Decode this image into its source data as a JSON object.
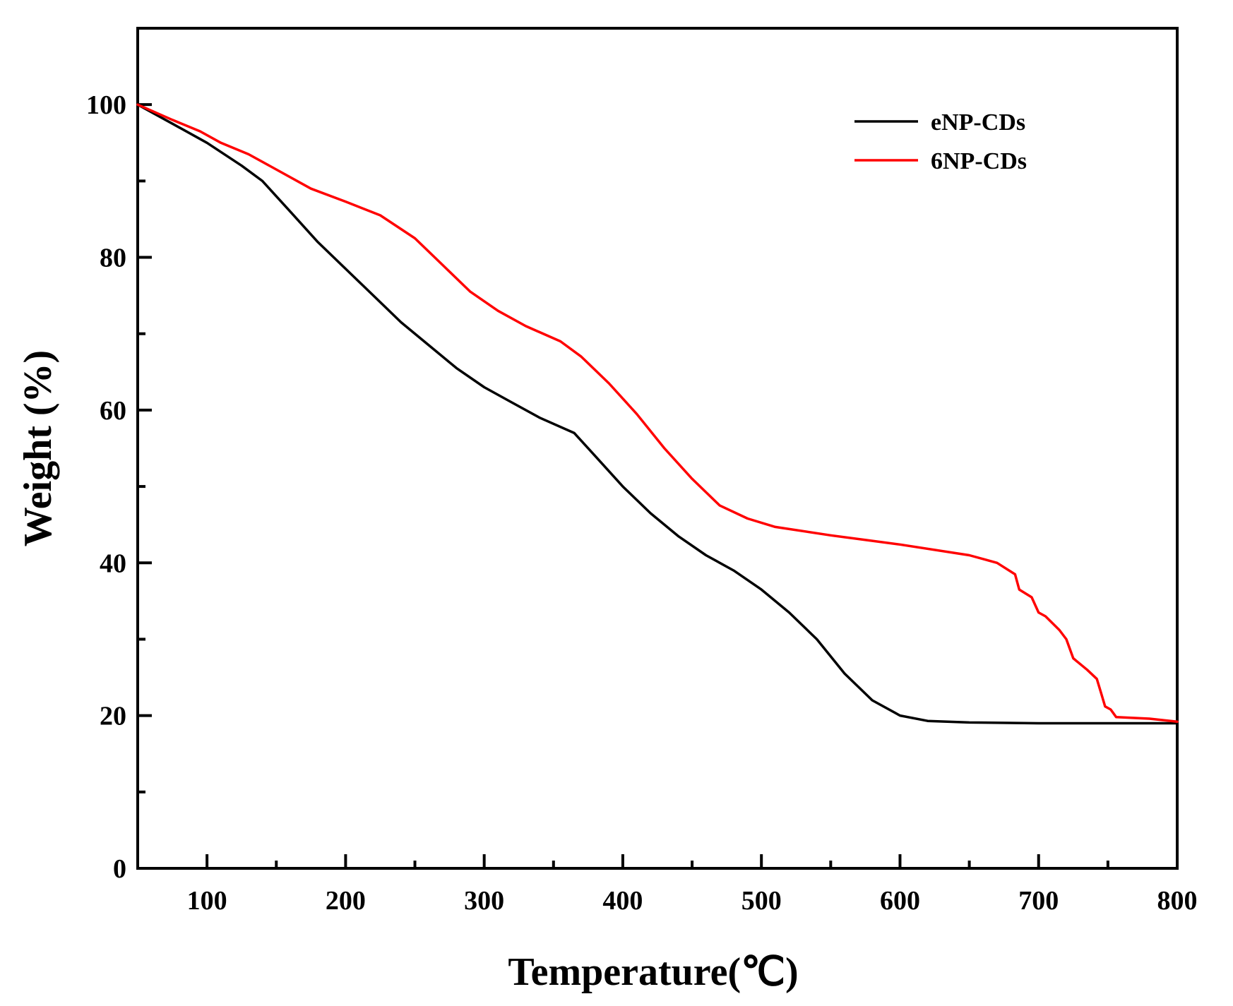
{
  "chart_data": {
    "type": "line",
    "title": "",
    "xlabel": "Temperature(℃)",
    "ylabel": "Weight (%)",
    "xlim": [
      50,
      800
    ],
    "ylim": [
      0,
      110
    ],
    "x_ticks": [
      100,
      200,
      300,
      400,
      500,
      600,
      700,
      800
    ],
    "x_tick_labels": [
      "100",
      "200",
      "300",
      "400",
      "500",
      "600",
      "700",
      "800"
    ],
    "y_ticks": [
      0,
      20,
      40,
      60,
      80,
      100
    ],
    "y_tick_labels": [
      "0",
      "20",
      "40",
      "60",
      "80",
      "100"
    ],
    "grid": false,
    "legend_position": "top-right",
    "series": [
      {
        "name": "eNP-CDs",
        "color": "#000000",
        "x": [
          50,
          75,
          100,
          125,
          140,
          160,
          180,
          200,
          220,
          240,
          260,
          280,
          300,
          320,
          340,
          365,
          380,
          400,
          420,
          440,
          460,
          480,
          500,
          520,
          540,
          560,
          580,
          600,
          620,
          650,
          700,
          750,
          800
        ],
        "y": [
          100,
          97.5,
          95,
          92,
          90,
          86,
          82,
          78.5,
          75,
          71.5,
          68.5,
          65.5,
          63,
          61,
          59,
          57,
          54,
          50,
          46.5,
          43.5,
          41,
          39,
          36.5,
          33.5,
          30,
          25.5,
          22,
          20,
          19.3,
          19.1,
          19,
          19,
          19
        ]
      },
      {
        "name": "6NP-CDs",
        "color": "#ff0000",
        "x": [
          50,
          75,
          95,
          110,
          130,
          150,
          175,
          200,
          225,
          250,
          270,
          290,
          310,
          330,
          355,
          370,
          390,
          410,
          430,
          450,
          470,
          490,
          510,
          550,
          600,
          650,
          670,
          683,
          686,
          695,
          700,
          705,
          715,
          720,
          725,
          735,
          742,
          745,
          748,
          752,
          756,
          780,
          800
        ],
        "y": [
          100,
          98,
          96.5,
          95,
          93.5,
          91.5,
          89,
          87.3,
          85.5,
          82.5,
          79,
          75.5,
          73,
          71,
          69,
          67,
          63.5,
          59.5,
          55,
          51,
          47.5,
          45.8,
          44.7,
          43.6,
          42.4,
          41,
          40,
          38.5,
          36.5,
          35.5,
          33.5,
          33,
          31.2,
          30,
          27.5,
          26,
          24.8,
          23,
          21.2,
          20.8,
          19.8,
          19.6,
          19.2
        ]
      }
    ]
  }
}
